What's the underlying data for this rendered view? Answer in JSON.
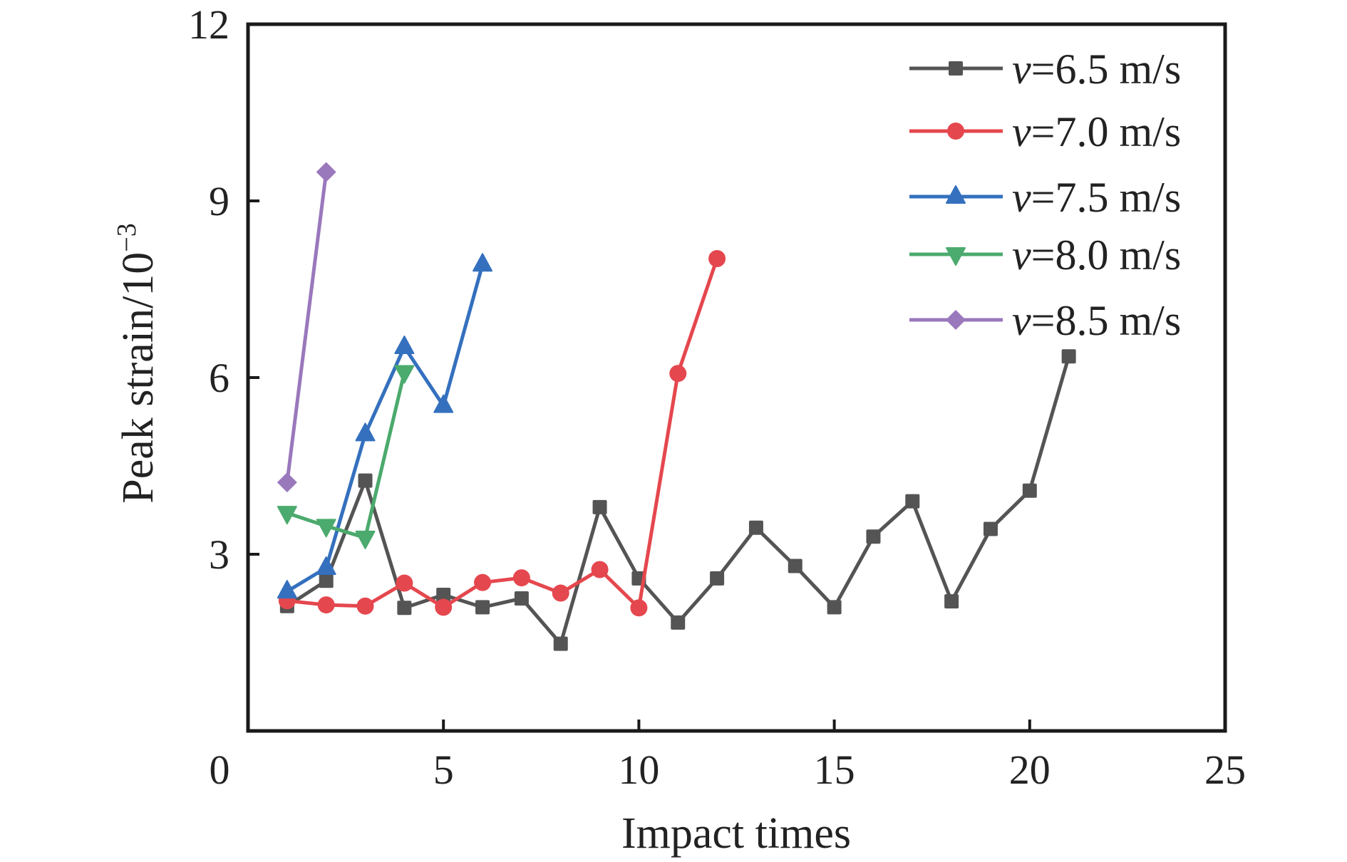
{
  "chart_data": {
    "type": "line",
    "title": "",
    "xlabel": "Impact times",
    "ylabel": "Peak strain/10",
    "ylabel_superscript": "−3",
    "xlim": [
      0,
      25
    ],
    "ylim": [
      0,
      12
    ],
    "xticks": [
      0,
      5,
      10,
      15,
      20,
      25
    ],
    "yticks": [
      3,
      6,
      9,
      12
    ],
    "xtick_labels": [
      "0",
      "5",
      "10",
      "15",
      "20",
      "25"
    ],
    "ytick_labels": [
      "3",
      "6",
      "9",
      "12"
    ],
    "grid": false,
    "legend_position": "top-right",
    "series": [
      {
        "name": "v=6.5 m/s",
        "legend_var": "v",
        "legend_rest": "=6.5 m/s",
        "marker": "square",
        "color": "#545454",
        "x": [
          1,
          2,
          3,
          4,
          5,
          6,
          7,
          8,
          9,
          10,
          11,
          12,
          13,
          14,
          15,
          16,
          17,
          18,
          19,
          20,
          21
        ],
        "y": [
          2.12,
          2.55,
          4.25,
          2.09,
          2.31,
          2.1,
          2.25,
          1.48,
          3.8,
          2.59,
          1.84,
          2.59,
          3.45,
          2.8,
          2.1,
          3.3,
          3.9,
          2.2,
          3.43,
          4.08,
          6.36
        ]
      },
      {
        "name": "v=7.0 m/s",
        "legend_var": "v",
        "legend_rest": "=7.0 m/s",
        "marker": "circle",
        "color": "#E5474E",
        "x": [
          1,
          2,
          3,
          4,
          5,
          6,
          7,
          8,
          9,
          10,
          11,
          12
        ],
        "y": [
          2.21,
          2.14,
          2.12,
          2.51,
          2.1,
          2.52,
          2.6,
          2.34,
          2.74,
          2.09,
          6.07,
          8.02
        ]
      },
      {
        "name": "v=7.5 m/s",
        "legend_var": "v",
        "legend_rest": "=7.5 m/s",
        "marker": "triangle-up",
        "color": "#3470BE",
        "x": [
          1,
          2,
          3,
          4,
          5,
          6
        ],
        "y": [
          2.37,
          2.77,
          5.04,
          6.52,
          5.52,
          7.92
        ]
      },
      {
        "name": "v=8.0 m/s",
        "legend_var": "v",
        "legend_rest": "=8.0 m/s",
        "marker": "triangle-down",
        "color": "#4BAA6D",
        "x": [
          1,
          2,
          3,
          4
        ],
        "y": [
          3.7,
          3.48,
          3.28,
          6.09
        ]
      },
      {
        "name": "v=8.5 m/s",
        "legend_var": "v",
        "legend_rest": "=8.5 m/s",
        "marker": "diamond",
        "color": "#9A78BC",
        "x": [
          1,
          2
        ],
        "y": [
          4.22,
          9.49
        ]
      }
    ]
  }
}
